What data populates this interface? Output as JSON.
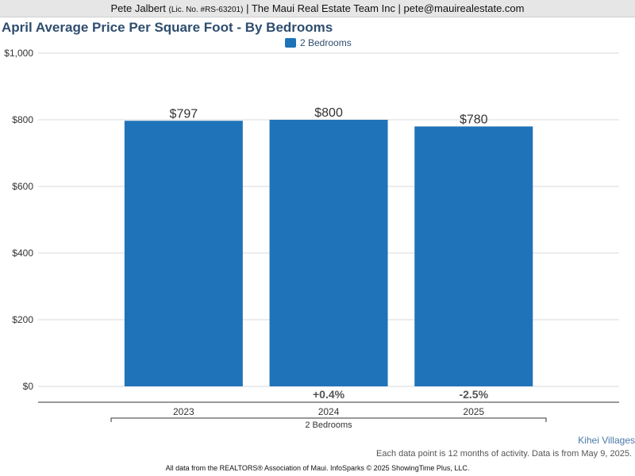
{
  "header": {
    "agent_name": "Pete Jalbert",
    "license": "(Lic. No. #RS-63201)",
    "rest": "| The Maui Real Estate Team Inc | pete@mauirealestate.com"
  },
  "footer": {
    "market_link": "Kihei Villages",
    "note": "Each data point is 12 months of activity. Data is from May 9, 2025.",
    "source": "All data from the REALTORS® Association of Maui. InfoSparks © 2025 ShowingTime Plus, LLC."
  },
  "colors": {
    "bar": "#1f73b8",
    "title": "#2e4d6e",
    "grid": "#d9d9d9"
  },
  "chart_data": {
    "type": "bar",
    "title": "April Average Price Per Square Foot - By Bedrooms",
    "categories": [
      "2023",
      "2024",
      "2025"
    ],
    "group_label": "2 Bedrooms",
    "series": [
      {
        "name": "2 Bedrooms",
        "values": [
          797,
          800,
          780
        ],
        "value_labels": [
          "$797",
          "$800",
          "$780"
        ],
        "change_labels": [
          "",
          "+0.4%",
          "-2.5%"
        ]
      }
    ],
    "ylim": [
      0,
      1000
    ],
    "yticks": [
      0,
      200,
      400,
      600,
      800,
      1000
    ],
    "ytick_labels": [
      "$0",
      "$200",
      "$400",
      "$600",
      "$800",
      "$1,000"
    ],
    "grid": true,
    "legend": "top-center"
  }
}
